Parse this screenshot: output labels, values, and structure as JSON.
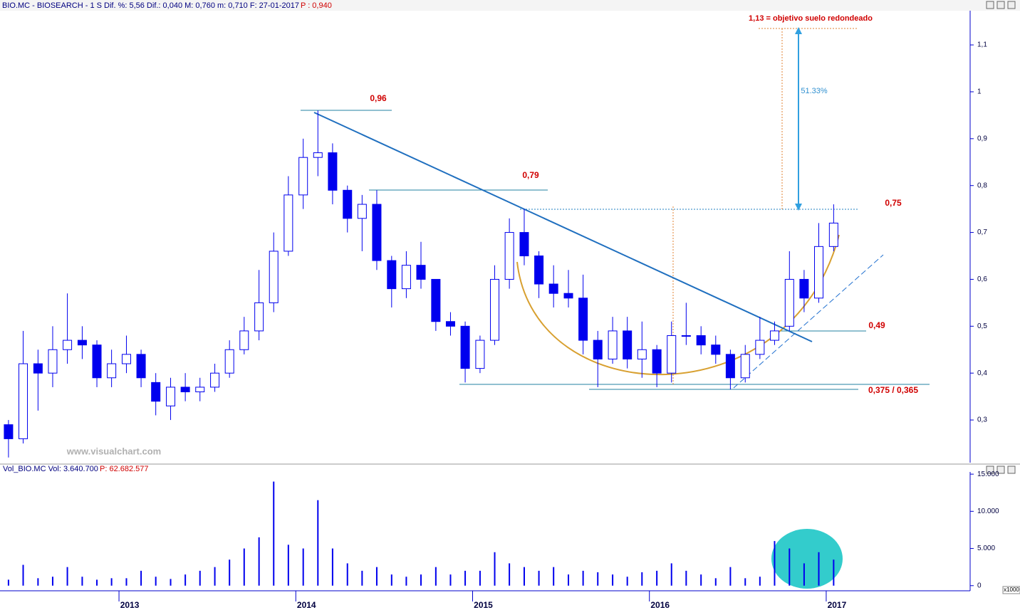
{
  "chart_data": [
    {
      "type": "candlestick",
      "title": "BIO.MC - BIOSEARCH - 1 S  Dif. %: 5,56  Dif.: 0,040  M: 0,760  m: 0,710  F: 27-01-2017",
      "subtitle": "P : 0,940",
      "annotations": [
        "0,96",
        "0,79",
        "0,75",
        "0,49",
        "0,375 / 0,365",
        "1,13 = objetivo suelo redondeado",
        "51.33%",
        "www.visualchart.com"
      ],
      "color": "#0000ee",
      "x": [
        2012.375,
        2012.458,
        2012.542,
        2012.625,
        2012.708,
        2012.792,
        2012.875,
        2012.958,
        2013.042,
        2013.125,
        2013.208,
        2013.292,
        2013.375,
        2013.458,
        2013.542,
        2013.625,
        2013.708,
        2013.792,
        2013.875,
        2013.958,
        2014.042,
        2014.125,
        2014.208,
        2014.292,
        2014.375,
        2014.458,
        2014.542,
        2014.625,
        2014.708,
        2014.792,
        2014.875,
        2014.958,
        2015.042,
        2015.125,
        2015.208,
        2015.292,
        2015.375,
        2015.458,
        2015.542,
        2015.625,
        2015.708,
        2015.792,
        2015.875,
        2015.958,
        2016.042,
        2016.125,
        2016.208,
        2016.292,
        2016.375,
        2016.458,
        2016.542,
        2016.625,
        2016.708,
        2016.792,
        2016.875,
        2016.958,
        2017.042
      ],
      "open": [
        0.29,
        0.26,
        0.42,
        0.4,
        0.45,
        0.47,
        0.46,
        0.39,
        0.42,
        0.44,
        0.38,
        0.33,
        0.37,
        0.36,
        0.37,
        0.4,
        0.45,
        0.49,
        0.55,
        0.66,
        0.78,
        0.86,
        0.87,
        0.79,
        0.73,
        0.76,
        0.64,
        0.58,
        0.63,
        0.6,
        0.51,
        0.5,
        0.41,
        0.47,
        0.6,
        0.7,
        0.65,
        0.59,
        0.57,
        0.56,
        0.47,
        0.43,
        0.49,
        0.43,
        0.45,
        0.4,
        0.48,
        0.48,
        0.46,
        0.44,
        0.39,
        0.44,
        0.47,
        0.5,
        0.6,
        0.56,
        0.67
      ],
      "high": [
        0.3,
        0.49,
        0.45,
        0.5,
        0.57,
        0.5,
        0.47,
        0.45,
        0.48,
        0.45,
        0.4,
        0.39,
        0.4,
        0.39,
        0.42,
        0.47,
        0.52,
        0.62,
        0.7,
        0.82,
        0.9,
        0.96,
        0.89,
        0.8,
        0.78,
        0.79,
        0.65,
        0.66,
        0.68,
        0.6,
        0.53,
        0.51,
        0.48,
        0.63,
        0.73,
        0.75,
        0.66,
        0.63,
        0.62,
        0.61,
        0.49,
        0.52,
        0.52,
        0.51,
        0.46,
        0.51,
        0.55,
        0.5,
        0.48,
        0.45,
        0.46,
        0.52,
        0.51,
        0.66,
        0.62,
        0.72,
        0.76
      ],
      "low": [
        0.22,
        0.25,
        0.32,
        0.37,
        0.42,
        0.43,
        0.37,
        0.37,
        0.4,
        0.37,
        0.31,
        0.3,
        0.34,
        0.34,
        0.36,
        0.39,
        0.44,
        0.47,
        0.53,
        0.65,
        0.75,
        0.82,
        0.76,
        0.7,
        0.66,
        0.62,
        0.54,
        0.56,
        0.58,
        0.49,
        0.48,
        0.38,
        0.4,
        0.46,
        0.58,
        0.63,
        0.56,
        0.54,
        0.54,
        0.44,
        0.37,
        0.42,
        0.41,
        0.39,
        0.37,
        0.38,
        0.46,
        0.44,
        0.42,
        0.365,
        0.38,
        0.43,
        0.46,
        0.49,
        0.53,
        0.55,
        0.66
      ],
      "close": [
        0.26,
        0.42,
        0.4,
        0.45,
        0.47,
        0.46,
        0.39,
        0.42,
        0.44,
        0.39,
        0.34,
        0.37,
        0.36,
        0.37,
        0.4,
        0.45,
        0.49,
        0.55,
        0.66,
        0.78,
        0.86,
        0.87,
        0.79,
        0.73,
        0.76,
        0.64,
        0.58,
        0.63,
        0.6,
        0.51,
        0.5,
        0.41,
        0.47,
        0.6,
        0.7,
        0.65,
        0.59,
        0.57,
        0.56,
        0.47,
        0.43,
        0.49,
        0.43,
        0.45,
        0.4,
        0.48,
        0.48,
        0.46,
        0.44,
        0.39,
        0.44,
        0.47,
        0.49,
        0.6,
        0.56,
        0.67,
        0.72
      ],
      "xlim": [
        2012.327,
        2017.806
      ],
      "ylim": [
        0.209,
        1.173
      ],
      "yticks": [
        {
          "value": 0.3,
          "label": "0,3"
        },
        {
          "value": 0.4,
          "label": "0,4"
        },
        {
          "value": 0.5,
          "label": "0,5"
        },
        {
          "value": 0.6,
          "label": "0,6"
        },
        {
          "value": 0.7,
          "label": "0,7"
        },
        {
          "value": 0.8,
          "label": "0,8"
        },
        {
          "value": 0.9,
          "label": "0,9"
        },
        1,
        {
          "value": 1.1,
          "label": "1,1"
        }
      ]
    },
    {
      "type": "bar",
      "title": "Vol_BIO.MC Vol: 3.640.700",
      "subtitle": "P: 62.682.577",
      "unit_label": "x1000",
      "color": "#0000ee",
      "x": [
        2012.375,
        2012.458,
        2012.542,
        2012.625,
        2012.708,
        2012.792,
        2012.875,
        2012.958,
        2013.042,
        2013.125,
        2013.208,
        2013.292,
        2013.375,
        2013.458,
        2013.542,
        2013.625,
        2013.708,
        2013.792,
        2013.875,
        2013.958,
        2014.042,
        2014.125,
        2014.208,
        2014.292,
        2014.375,
        2014.458,
        2014.542,
        2014.625,
        2014.708,
        2014.792,
        2014.875,
        2014.958,
        2015.042,
        2015.125,
        2015.208,
        2015.292,
        2015.375,
        2015.458,
        2015.542,
        2015.625,
        2015.708,
        2015.792,
        2015.875,
        2015.958,
        2016.042,
        2016.125,
        2016.208,
        2016.292,
        2016.375,
        2016.458,
        2016.542,
        2016.625,
        2016.708,
        2016.792,
        2016.875,
        2016.958,
        2017.042
      ],
      "values": [
        800,
        2800,
        1000,
        1200,
        2500,
        1200,
        800,
        1000,
        1000,
        2000,
        1200,
        900,
        1500,
        2000,
        2500,
        3500,
        5000,
        6500,
        14000,
        5500,
        5000,
        11500,
        5000,
        3000,
        2000,
        2500,
        1500,
        1200,
        1500,
        2500,
        1500,
        2000,
        2000,
        4500,
        3000,
        2500,
        2000,
        2500,
        1500,
        2000,
        1800,
        1500,
        1200,
        1800,
        2000,
        3000,
        2000,
        1500,
        1000,
        2500,
        1000,
        1200,
        6000,
        5000,
        3000,
        4500,
        3500
      ],
      "xlim": [
        2012.327,
        2017.806
      ],
      "ylim": [
        -500,
        15300
      ],
      "xticks": [
        2013,
        2014,
        2015,
        2016,
        2017
      ],
      "yticks": [
        0,
        {
          "value": 5000,
          "label": "5.000"
        },
        {
          "value": 10000,
          "label": "10.000"
        },
        {
          "value": 15000,
          "label": "15.000"
        }
      ]
    }
  ]
}
